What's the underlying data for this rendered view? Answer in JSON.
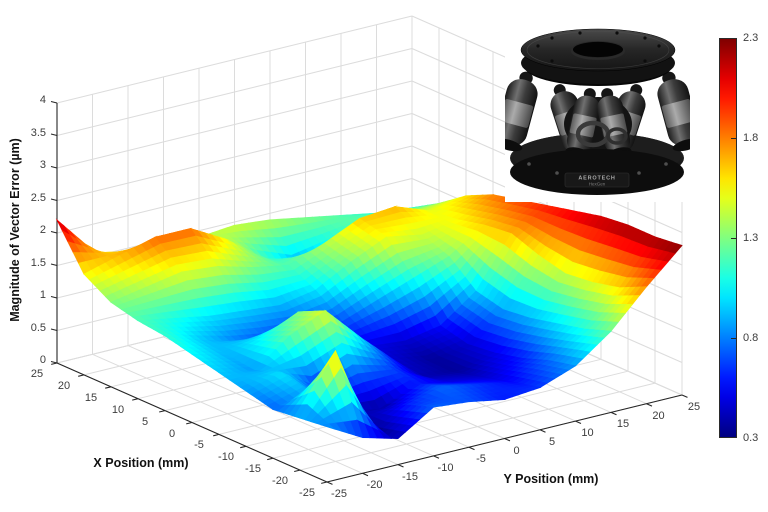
{
  "axes": {
    "xlabel": "X Position (mm)",
    "ylabel": "Y Position (mm)",
    "zlabel": "Magnitude of Vector Error (µm)",
    "x_ticks": [
      25,
      20,
      15,
      10,
      5,
      0,
      -5,
      -10,
      -15,
      -20,
      -25
    ],
    "x_tick_labels": [
      "25",
      "20",
      "15",
      "10",
      "5",
      "0",
      "-5",
      "-10",
      "-15",
      "-20",
      "-25"
    ],
    "y_ticks": [
      -25,
      -20,
      -15,
      -10,
      -5,
      0,
      5,
      10,
      15,
      20,
      25
    ],
    "y_tick_labels": [
      "-25",
      "-20",
      "-15",
      "-10",
      "-5",
      "0",
      "5",
      "10",
      "15",
      "20",
      "25"
    ],
    "z_ticks": [
      0,
      0.5,
      1,
      1.5,
      2,
      2.5,
      3,
      3.5,
      4
    ],
    "z_tick_labels": [
      "0",
      "0.5",
      "1",
      "1.5",
      "2",
      "2.5",
      "3",
      "3.5",
      "4"
    ]
  },
  "chart_data": {
    "type": "surface",
    "title": "",
    "xlabel": "X Position (mm)",
    "ylabel": "Y Position (mm)",
    "zlabel": "Magnitude of Vector Error (µm)",
    "x": [
      25,
      20,
      15,
      10,
      5,
      0,
      -5,
      -10,
      -15,
      -20,
      -25
    ],
    "y": [
      -25,
      -20,
      -15,
      -10,
      -5,
      0,
      5,
      10,
      15,
      20,
      25
    ],
    "z": [
      [
        2.2,
        1.6,
        1.3,
        1.35,
        1.4,
        1.45,
        1.4,
        1.3,
        1.2,
        1.1,
        1.05
      ],
      [
        1.55,
        1.7,
        1.85,
        1.85,
        1.55,
        1.15,
        0.9,
        1.05,
        1.25,
        1.3,
        1.3
      ],
      [
        1.3,
        1.4,
        1.5,
        1.45,
        1.3,
        1.2,
        1.4,
        1.65,
        1.7,
        1.5,
        1.6
      ],
      [
        1.2,
        1.1,
        1.0,
        0.95,
        0.9,
        1.0,
        1.3,
        1.55,
        1.45,
        1.55,
        1.8
      ],
      [
        1.15,
        0.95,
        0.8,
        0.7,
        0.65,
        0.7,
        0.9,
        1.1,
        1.3,
        1.65,
        1.9
      ],
      [
        1.05,
        0.9,
        1.05,
        1.3,
        0.8,
        0.5,
        0.45,
        0.55,
        0.95,
        1.7,
        2.0
      ],
      [
        0.95,
        0.85,
        1.25,
        1.5,
        0.95,
        0.45,
        0.35,
        0.45,
        0.85,
        1.55,
        2.1
      ],
      [
        0.85,
        1.0,
        0.65,
        0.85,
        0.7,
        0.4,
        0.35,
        0.5,
        0.9,
        1.45,
        2.2
      ],
      [
        0.75,
        0.9,
        0.45,
        0.35,
        0.6,
        0.5,
        0.45,
        0.6,
        1.0,
        1.5,
        2.25
      ],
      [
        0.8,
        1.7,
        0.3,
        0.6,
        0.75,
        0.65,
        0.55,
        0.75,
        1.1,
        1.6,
        2.25
      ],
      [
        0.85,
        0.55,
        0.4,
        0.75,
        0.7,
        0.6,
        0.65,
        0.85,
        1.25,
        1.8,
        2.3
      ]
    ],
    "zlim": [
      0,
      4
    ],
    "clim": [
      0.3,
      2.3
    ],
    "colormap": "jet",
    "shading": "interp",
    "grid": true,
    "colorbar": {
      "min": 0.3,
      "max": 2.3,
      "ticks": [
        0.3,
        0.8,
        1.3,
        1.8,
        2.3
      ],
      "tick_labels": [
        "0.3",
        "0.8",
        "1.3",
        "1.8",
        "2.3"
      ],
      "position": "right"
    }
  },
  "inset": {
    "label_line1": "AEROTECH",
    "label_line2": "HexGen"
  },
  "colors": {
    "background": "#ffffff",
    "grid": "#dcdcdc",
    "axis": "#262626",
    "tick_text": "#3d3d3d",
    "label_text": "#111111",
    "colormap_low": "#00008f",
    "colormap_high": "#800000"
  }
}
